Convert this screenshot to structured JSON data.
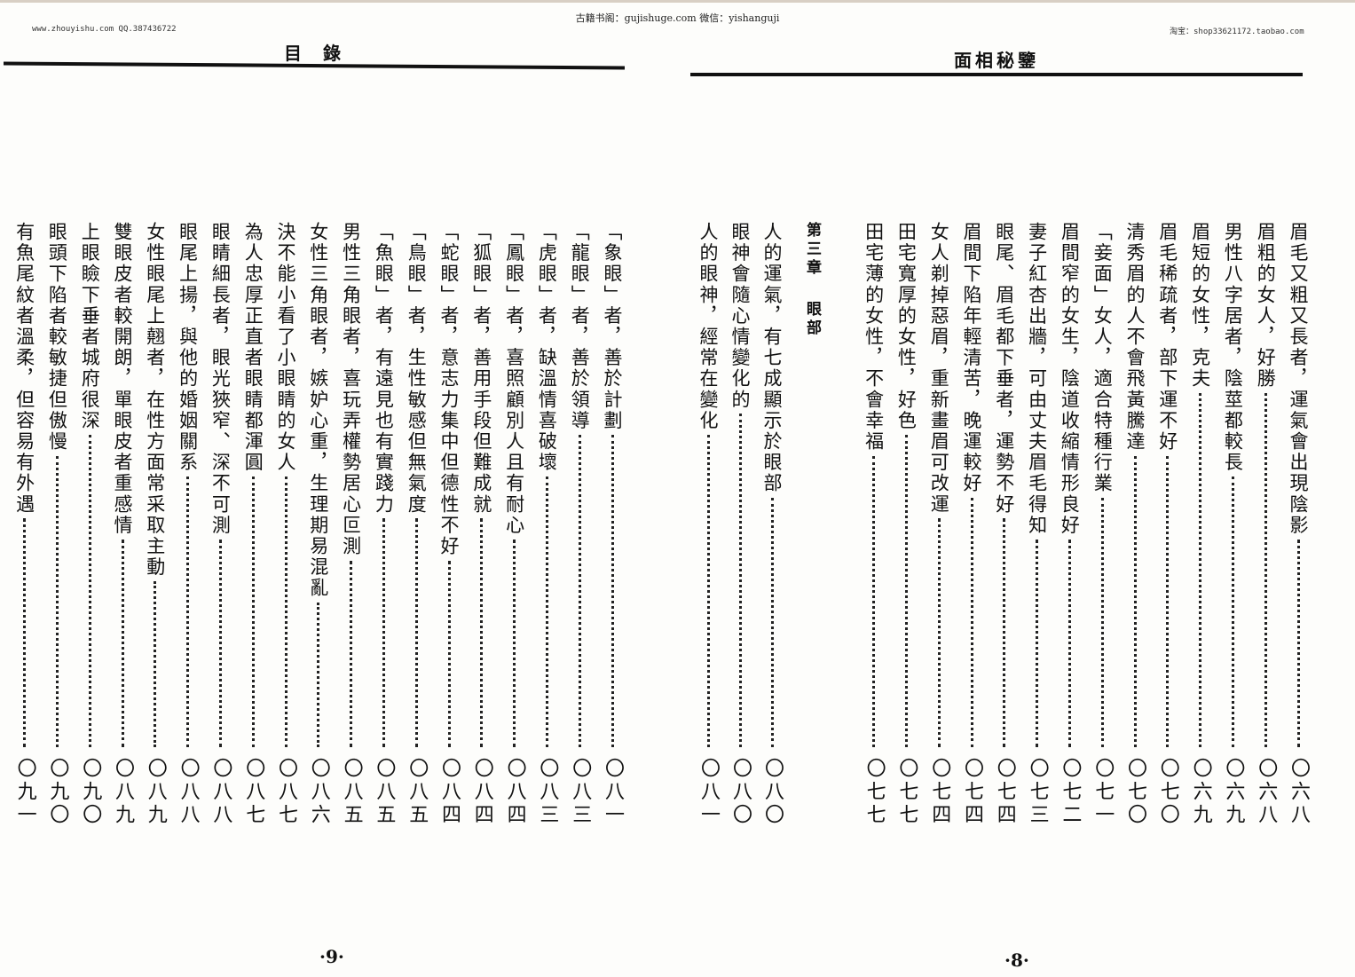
{
  "watermark_center": "古籍书阁：gujishuge.com 微信：yishanguji",
  "watermark_left": "www.zhouyishu.com QQ.387436722",
  "watermark_right": "淘宝：shop33621172.taobao.com",
  "left_page": {
    "title": "目錄",
    "page_number": "·9·",
    "entries": [
      {
        "text": "「象眼」者，善於計劃",
        "page": "〇八一"
      },
      {
        "text": "「龍眼」者，善於領導",
        "page": "〇八三"
      },
      {
        "text": "「虎眼」者，缺溫情喜破壞",
        "page": "〇八三"
      },
      {
        "text": "「鳳眼」者，喜照顧別人且有耐心",
        "page": "〇八四"
      },
      {
        "text": "「狐眼」者，善用手段但難成就",
        "page": "〇八四"
      },
      {
        "text": "「蛇眼」者，意志力集中但德性不好",
        "page": "〇八四"
      },
      {
        "text": "「鳥眼」者，生性敏感但無氣度",
        "page": "〇八五"
      },
      {
        "text": "「魚眼」者，有遠見也有實踐力",
        "page": "〇八五"
      },
      {
        "text": "男性三角眼者，喜玩弄權勢居心叵測",
        "page": "〇八五"
      },
      {
        "text": "女性三角眼者，嫉妒心重，生理期易混亂",
        "page": "〇八六"
      },
      {
        "text": "決不能小看了小眼睛的女人",
        "page": "〇八七"
      },
      {
        "text": "為人忠厚正直者眼睛都渾圓",
        "page": "〇八七"
      },
      {
        "text": "眼睛細長者，眼光狹窄、深不可測",
        "page": "〇八八"
      },
      {
        "text": "眼尾上揚，與他的婚姻關系",
        "page": "〇八八"
      },
      {
        "text": "女性眼尾上翹者，在性方面常采取主動",
        "page": "〇八九"
      },
      {
        "text": "雙眼皮者較開朗，單眼皮者重感情",
        "page": "〇八九"
      },
      {
        "text": "上眼瞼下垂者城府很深",
        "page": "〇九〇"
      },
      {
        "text": "眼頭下陷者較敏捷但傲慢",
        "page": "〇九〇"
      },
      {
        "text": "有魚尾紋者溫柔，但容易有外遇",
        "page": "〇九一"
      }
    ]
  },
  "right_page": {
    "title": "面相秘鑒",
    "page_number": "·8·",
    "entries": [
      {
        "text": "眉毛又粗又長者，運氣會出現陰影",
        "page": "〇六八"
      },
      {
        "text": "眉粗的女人，好勝",
        "page": "〇六八"
      },
      {
        "text": "男性八字居者，陰莖都較長",
        "page": "〇六九"
      },
      {
        "text": "眉短的女性，克夫",
        "page": "〇六九"
      },
      {
        "text": "眉毛稀疏者，部下運不好",
        "page": "〇七〇"
      },
      {
        "text": "清秀眉的人不會飛黃騰達",
        "page": "〇七〇"
      },
      {
        "text": "「妾面」女人，適合特種行業",
        "page": "〇七一"
      },
      {
        "text": "眉間窄的女生，陰道收縮情形良好",
        "page": "〇七二"
      },
      {
        "text": "妻子紅杏出牆，可由丈夫眉毛得知",
        "page": "〇七三"
      },
      {
        "text": "眼尾、眉毛都下垂者，運勢不好",
        "page": "〇七四"
      },
      {
        "text": "眉間下陷年輕清苦，晚運較好",
        "page": "〇七四"
      },
      {
        "text": "女人剃掉惡眉，重新畫眉可改運",
        "page": "〇七四"
      },
      {
        "text": "田宅寬厚的女性，好色",
        "page": "〇七七"
      },
      {
        "text": "田宅薄的女性，不會幸福",
        "page": "〇七七"
      }
    ],
    "chapter": {
      "number": "第三章",
      "name": "眼部"
    },
    "chapter_entries": [
      {
        "text": "人的運氣，有七成顯示於眼部",
        "page": "〇八〇"
      },
      {
        "text": "眼神會隨心情變化的",
        "page": "〇八〇"
      },
      {
        "text": "人的眼神，經常在變化",
        "page": "〇八一"
      }
    ]
  }
}
